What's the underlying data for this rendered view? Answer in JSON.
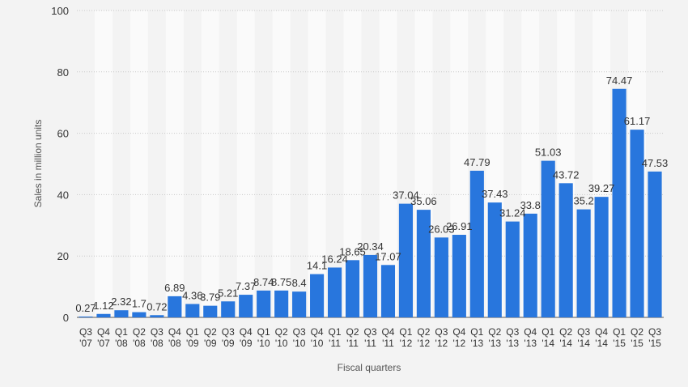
{
  "chart_data": {
    "type": "bar",
    "categories": [
      [
        "Q3",
        "'07"
      ],
      [
        "Q4",
        "'07"
      ],
      [
        "Q1",
        "'08"
      ],
      [
        "Q2",
        "'08"
      ],
      [
        "Q3",
        "'08"
      ],
      [
        "Q4",
        "'08"
      ],
      [
        "Q1",
        "'09"
      ],
      [
        "Q2",
        "'09"
      ],
      [
        "Q3",
        "'09"
      ],
      [
        "Q4",
        "'09"
      ],
      [
        "Q1",
        "'10"
      ],
      [
        "Q2",
        "'10"
      ],
      [
        "Q3",
        "'10"
      ],
      [
        "Q4",
        "'10"
      ],
      [
        "Q1",
        "'11"
      ],
      [
        "Q2",
        "'11"
      ],
      [
        "Q3",
        "'11"
      ],
      [
        "Q4",
        "'11"
      ],
      [
        "Q1",
        "'12"
      ],
      [
        "Q2",
        "'12"
      ],
      [
        "Q3",
        "'12"
      ],
      [
        "Q4",
        "'12"
      ],
      [
        "Q1",
        "'13"
      ],
      [
        "Q2",
        "'13"
      ],
      [
        "Q3",
        "'13"
      ],
      [
        "Q4",
        "'13"
      ],
      [
        "Q1",
        "'14"
      ],
      [
        "Q2",
        "'14"
      ],
      [
        "Q3",
        "'14"
      ],
      [
        "Q4",
        "'14"
      ],
      [
        "Q1",
        "'15"
      ],
      [
        "Q2",
        "'15"
      ],
      [
        "Q3",
        "'15"
      ]
    ],
    "values": [
      0.27,
      1.12,
      2.32,
      1.7,
      0.72,
      6.89,
      4.36,
      3.79,
      5.21,
      7.37,
      8.74,
      8.75,
      8.4,
      14.1,
      16.24,
      18.65,
      20.34,
      17.07,
      37.04,
      35.06,
      26.03,
      26.91,
      47.79,
      37.43,
      31.24,
      33.8,
      51.03,
      43.72,
      35.2,
      39.27,
      74.47,
      61.17,
      47.53
    ],
    "labels": [
      "0.27",
      "1.12",
      "2.32",
      "1.7",
      "0.72",
      "6.89",
      "4.36",
      "3.79",
      "5.21",
      "7.37",
      "8.74",
      "8.75",
      "8.4",
      "14.1",
      "16.24",
      "18.65",
      "20.34",
      "17.07",
      "37.04",
      "35.06",
      "26.03",
      "26.91",
      "47.79",
      "37.43",
      "31.24",
      "33.8",
      "51.03",
      "43.72",
      "35.2",
      "39.27",
      "74.47",
      "61.17",
      "47.53"
    ],
    "xlabel": "Fiscal quarters",
    "ylabel": "Sales in million units",
    "ylim": [
      0,
      100
    ],
    "yticks": [
      "0",
      "20",
      "40",
      "60",
      "80",
      "100"
    ],
    "grid": true,
    "colors": {
      "bar": "#2876dd",
      "band": "#fafafa",
      "background": "#f3f3f3",
      "grid": "#c8c8c8",
      "text": "#333333"
    }
  }
}
